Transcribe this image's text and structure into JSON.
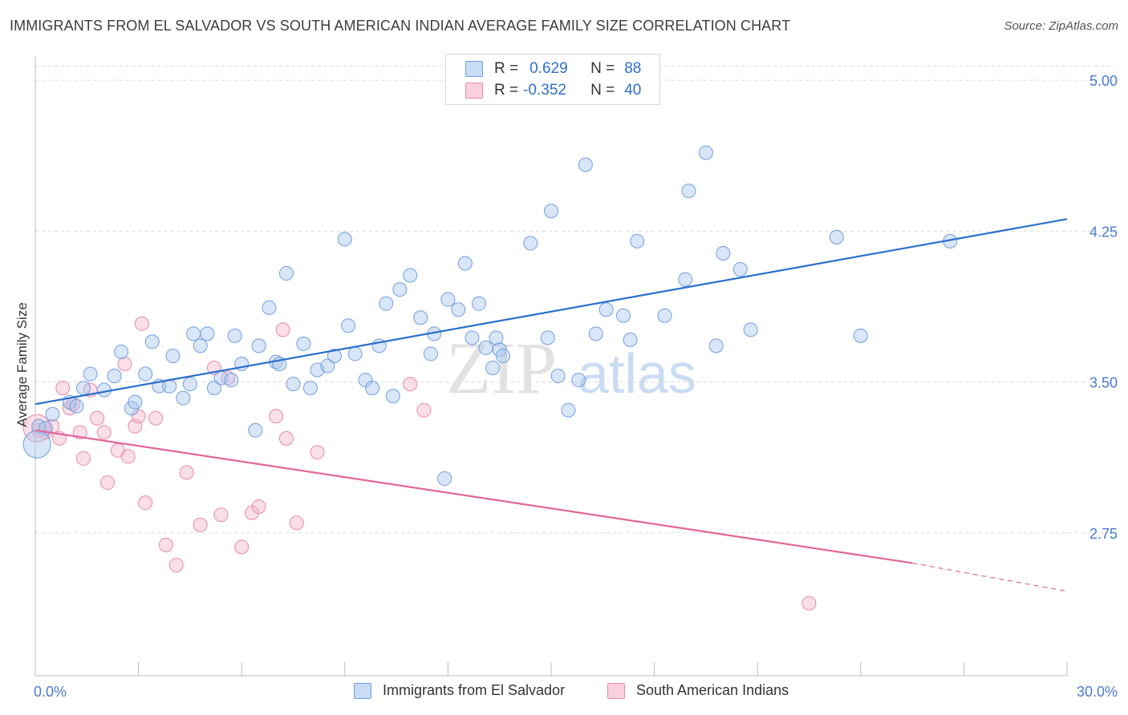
{
  "title": "IMMIGRANTS FROM EL SALVADOR VS SOUTH AMERICAN INDIAN AVERAGE FAMILY SIZE CORRELATION CHART",
  "source": "Source: ZipAtlas.com",
  "watermark": {
    "zip": "ZIP",
    "atlas": "atlas"
  },
  "legend": {
    "rows": [
      {
        "r_label": "R =",
        "r_value": "0.629",
        "n_label": "N =",
        "n_value": "88",
        "color": "#aac8f0"
      },
      {
        "r_label": "R =",
        "r_value": "-0.352",
        "n_label": "N =",
        "n_value": "40",
        "color": "#f5b8cb"
      }
    ]
  },
  "chart_data": {
    "type": "scatter",
    "xlabel": "",
    "ylabel": "Average Family Size",
    "xlim": [
      0,
      30
    ],
    "ylim": [
      2.04,
      5.12
    ],
    "x_tick_labels": [
      "0.0%",
      "30.0%"
    ],
    "y_ticks": [
      5.0,
      4.25,
      3.5,
      2.75
    ],
    "y_tick_labels": [
      "5.00",
      "4.25",
      "3.50",
      "2.75"
    ],
    "grid": "horizontal dashed",
    "legend_position": "top-center",
    "series": [
      {
        "name": "Immigrants from El Salvador",
        "color": "#aac8f0",
        "stroke": "#6f9fe0",
        "trend": {
          "x": [
            0,
            30
          ],
          "y": [
            3.39,
            4.31
          ],
          "color": "#2a6fcc"
        },
        "points": [
          [
            0.1,
            3.28
          ],
          [
            0.3,
            3.27
          ],
          [
            0.5,
            3.34
          ],
          [
            1.0,
            3.4
          ],
          [
            1.2,
            3.38
          ],
          [
            1.4,
            3.47
          ],
          [
            1.6,
            3.54
          ],
          [
            2.0,
            3.46
          ],
          [
            2.3,
            3.53
          ],
          [
            2.5,
            3.65
          ],
          [
            2.8,
            3.37
          ],
          [
            2.9,
            3.4
          ],
          [
            3.2,
            3.54
          ],
          [
            3.4,
            3.7
          ],
          [
            3.6,
            3.48
          ],
          [
            3.9,
            3.48
          ],
          [
            4.0,
            3.63
          ],
          [
            4.3,
            3.42
          ],
          [
            4.5,
            3.49
          ],
          [
            4.6,
            3.74
          ],
          [
            4.8,
            3.68
          ],
          [
            5.0,
            3.74
          ],
          [
            5.2,
            3.47
          ],
          [
            5.4,
            3.52
          ],
          [
            5.7,
            3.51
          ],
          [
            5.8,
            3.73
          ],
          [
            6.0,
            3.59
          ],
          [
            6.4,
            3.26
          ],
          [
            6.5,
            3.68
          ],
          [
            6.8,
            3.87
          ],
          [
            7.0,
            3.6
          ],
          [
            7.1,
            3.59
          ],
          [
            7.3,
            4.04
          ],
          [
            7.5,
            3.49
          ],
          [
            7.8,
            3.69
          ],
          [
            8.0,
            3.47
          ],
          [
            8.2,
            3.56
          ],
          [
            8.5,
            3.58
          ],
          [
            8.7,
            3.63
          ],
          [
            9.0,
            4.21
          ],
          [
            9.1,
            3.78
          ],
          [
            9.3,
            3.64
          ],
          [
            9.6,
            3.51
          ],
          [
            9.8,
            3.47
          ],
          [
            10.0,
            3.68
          ],
          [
            10.2,
            3.89
          ],
          [
            10.4,
            3.43
          ],
          [
            10.6,
            3.96
          ],
          [
            10.9,
            4.03
          ],
          [
            11.2,
            3.82
          ],
          [
            11.5,
            3.64
          ],
          [
            11.6,
            3.74
          ],
          [
            11.9,
            3.02
          ],
          [
            12.0,
            3.91
          ],
          [
            12.3,
            3.86
          ],
          [
            12.5,
            4.09
          ],
          [
            12.7,
            3.72
          ],
          [
            12.9,
            3.89
          ],
          [
            13.1,
            3.67
          ],
          [
            13.3,
            3.57
          ],
          [
            13.4,
            3.72
          ],
          [
            13.5,
            3.66
          ],
          [
            13.6,
            3.63
          ],
          [
            14.4,
            4.19
          ],
          [
            14.9,
            3.72
          ],
          [
            15.0,
            4.35
          ],
          [
            15.2,
            3.53
          ],
          [
            15.5,
            3.36
          ],
          [
            15.8,
            3.51
          ],
          [
            16.0,
            4.58
          ],
          [
            16.3,
            3.74
          ],
          [
            16.6,
            3.86
          ],
          [
            17.1,
            3.83
          ],
          [
            17.3,
            3.71
          ],
          [
            17.5,
            4.2
          ],
          [
            18.3,
            3.83
          ],
          [
            18.9,
            4.01
          ],
          [
            19.0,
            4.45
          ],
          [
            19.5,
            4.64
          ],
          [
            19.8,
            3.68
          ],
          [
            20.0,
            4.14
          ],
          [
            20.5,
            4.06
          ],
          [
            20.8,
            3.76
          ],
          [
            23.3,
            4.22
          ],
          [
            24.0,
            3.73
          ],
          [
            26.6,
            4.2
          ],
          [
            0.05,
            3.19
          ]
        ]
      },
      {
        "name": "South American Indians",
        "color": "#f5b8cb",
        "stroke": "#e88aa6",
        "trend": {
          "x": [
            0,
            25.5
          ],
          "y": [
            3.26,
            2.6
          ],
          "color": "#e0669a",
          "dashed_extension": {
            "x": [
              25.5,
              30
            ],
            "y": [
              2.6,
              2.46
            ]
          }
        },
        "points": [
          [
            0.1,
            3.26
          ],
          [
            0.3,
            3.25
          ],
          [
            0.5,
            3.28
          ],
          [
            0.7,
            3.22
          ],
          [
            0.8,
            3.47
          ],
          [
            1.0,
            3.37
          ],
          [
            1.1,
            3.39
          ],
          [
            1.3,
            3.25
          ],
          [
            1.4,
            3.12
          ],
          [
            1.6,
            3.46
          ],
          [
            1.8,
            3.32
          ],
          [
            2.0,
            3.25
          ],
          [
            2.1,
            3.0
          ],
          [
            2.4,
            3.16
          ],
          [
            2.6,
            3.59
          ],
          [
            2.7,
            3.13
          ],
          [
            2.9,
            3.28
          ],
          [
            3.0,
            3.33
          ],
          [
            3.1,
            3.79
          ],
          [
            3.2,
            2.9
          ],
          [
            3.5,
            3.32
          ],
          [
            3.8,
            2.69
          ],
          [
            4.1,
            2.59
          ],
          [
            4.4,
            3.05
          ],
          [
            4.8,
            2.79
          ],
          [
            5.2,
            3.57
          ],
          [
            5.4,
            2.84
          ],
          [
            5.6,
            3.52
          ],
          [
            6.0,
            2.68
          ],
          [
            6.3,
            2.85
          ],
          [
            6.5,
            2.88
          ],
          [
            7.0,
            3.33
          ],
          [
            7.2,
            3.76
          ],
          [
            7.3,
            3.22
          ],
          [
            7.6,
            2.8
          ],
          [
            8.2,
            3.15
          ],
          [
            10.9,
            3.49
          ],
          [
            11.3,
            3.36
          ],
          [
            22.5,
            2.4
          ],
          [
            0.05,
            3.27
          ]
        ]
      }
    ]
  },
  "bottom_legend": {
    "items": [
      {
        "label": "Immigrants from El Salvador",
        "color": "#aac8f0"
      },
      {
        "label": "South American Indians",
        "color": "#f5b8cb"
      }
    ]
  }
}
